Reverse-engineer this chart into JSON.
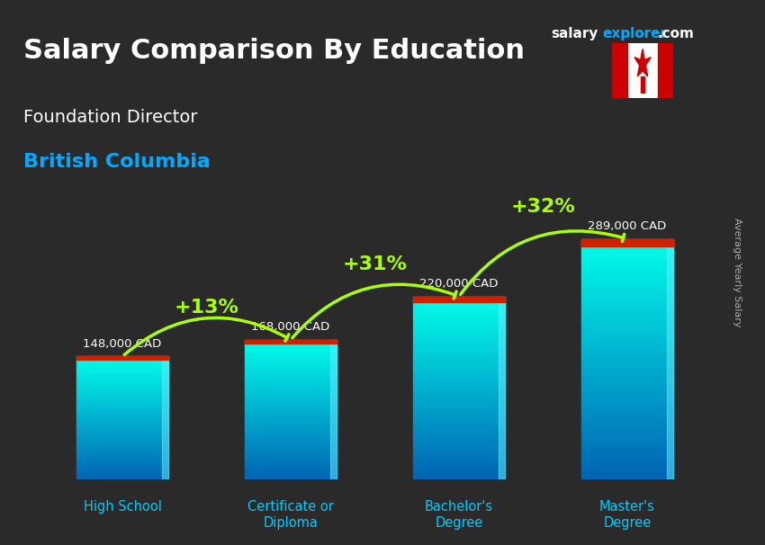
{
  "title_line1": "Salary Comparison By Education",
  "subtitle1": "Foundation Director",
  "subtitle2": "British Columbia",
  "ylabel": "Average Yearly Salary",
  "categories": [
    "High School",
    "Certificate or\nDiploma",
    "Bachelor's\nDegree",
    "Master's\nDegree"
  ],
  "values": [
    148000,
    168000,
    220000,
    289000
  ],
  "value_labels": [
    "148,000 CAD",
    "168,000 CAD",
    "220,000 CAD",
    "289,000 CAD"
  ],
  "pct_labels": [
    "+13%",
    "+31%",
    "+32%"
  ],
  "bar_color_top": "#00d4ff",
  "bar_color_bottom": "#0088cc",
  "bar_color_mid": "#00bbee",
  "background_color": "#1a1a2e",
  "title_color": "#ffffff",
  "subtitle1_color": "#ffffff",
  "subtitle2_color": "#00aaff",
  "value_label_color": "#ffffff",
  "pct_color": "#aaff00",
  "arrow_color": "#aaff00",
  "site_salary_color": "#ffffff",
  "site_explorer_color": "#00aaff",
  "site_com_color": "#ffffff",
  "xlim": [
    -0.5,
    3.5
  ],
  "ylim": [
    0,
    360000
  ]
}
